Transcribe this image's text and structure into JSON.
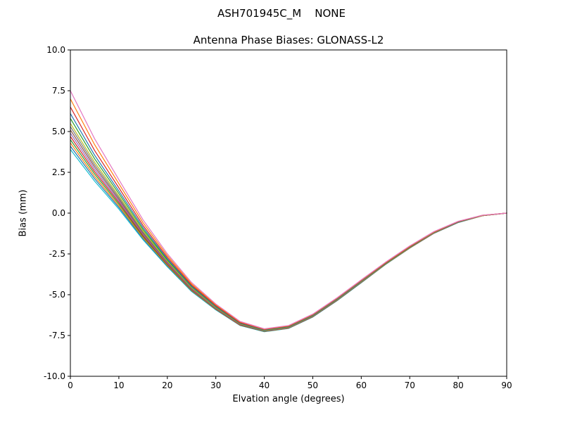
{
  "chart_data": {
    "type": "line",
    "suptitle": "ASH701945C_M    NONE",
    "title": "Antenna Phase Biases: GLONASS-L2",
    "xlabel": "Elvation angle (degrees)",
    "ylabel": "Bias (mm)",
    "xlim": [
      0,
      90
    ],
    "ylim": [
      -10,
      10
    ],
    "xticks": [
      0,
      10,
      20,
      30,
      40,
      50,
      60,
      70,
      80,
      90
    ],
    "yticks": [
      -10,
      -7.5,
      -5,
      -2.5,
      0,
      2.5,
      5,
      7.5,
      10
    ],
    "grid": false,
    "legend_position": "none",
    "x": [
      0,
      5,
      10,
      15,
      20,
      25,
      30,
      35,
      40,
      45,
      50,
      55,
      60,
      65,
      70,
      75,
      80,
      85,
      90
    ],
    "series": [
      {
        "name": "s01",
        "color": "#17becf",
        "values": [
          3.9,
          1.96,
          0.25,
          -1.64,
          -3.29,
          -4.8,
          -5.93,
          -6.89,
          -7.27,
          -7.07,
          -6.37,
          -5.37,
          -4.27,
          -3.15,
          -2.15,
          -1.24,
          -0.58,
          -0.16,
          0.0
        ]
      },
      {
        "name": "s02",
        "color": "#1f77b4",
        "values": [
          4.1,
          2.11,
          0.35,
          -1.57,
          -3.24,
          -4.77,
          -5.91,
          -6.88,
          -7.26,
          -7.06,
          -6.36,
          -5.36,
          -4.26,
          -3.14,
          -2.14,
          -1.23,
          -0.57,
          -0.16,
          0.0
        ]
      },
      {
        "name": "s03",
        "color": "#ff7f0e",
        "values": [
          4.3,
          2.25,
          0.45,
          -1.51,
          -3.2,
          -4.74,
          -5.89,
          -6.86,
          -7.25,
          -7.05,
          -6.35,
          -5.35,
          -4.25,
          -3.14,
          -2.14,
          -1.23,
          -0.57,
          -0.16,
          0.0
        ]
      },
      {
        "name": "s04",
        "color": "#2ca02c",
        "values": [
          4.5,
          2.4,
          0.55,
          -1.44,
          -3.15,
          -4.71,
          -5.87,
          -6.85,
          -7.24,
          -7.04,
          -6.34,
          -5.34,
          -4.24,
          -3.13,
          -2.13,
          -1.22,
          -0.56,
          -0.16,
          0.0
        ]
      },
      {
        "name": "s05",
        "color": "#d62728",
        "values": [
          4.7,
          2.54,
          0.65,
          -1.37,
          -3.11,
          -4.68,
          -5.85,
          -6.84,
          -7.23,
          -7.03,
          -6.33,
          -5.33,
          -4.23,
          -3.12,
          -2.12,
          -1.22,
          -0.56,
          -0.16,
          0.0
        ]
      },
      {
        "name": "s06",
        "color": "#9467bd",
        "values": [
          4.9,
          2.68,
          0.75,
          -1.3,
          -3.07,
          -4.65,
          -5.83,
          -6.82,
          -7.22,
          -7.02,
          -6.32,
          -5.32,
          -4.22,
          -3.11,
          -2.11,
          -1.21,
          -0.56,
          -0.15,
          0.0
        ]
      },
      {
        "name": "s07",
        "color": "#8c564b",
        "values": [
          5.1,
          2.83,
          0.85,
          -1.23,
          -3.02,
          -4.62,
          -5.81,
          -6.81,
          -7.21,
          -7.01,
          -6.31,
          -5.31,
          -4.21,
          -3.1,
          -2.1,
          -1.2,
          -0.55,
          -0.15,
          0.0
        ]
      },
      {
        "name": "s08",
        "color": "#7f7f7f",
        "values": [
          5.3,
          2.97,
          0.95,
          -1.17,
          -2.98,
          -4.58,
          -5.79,
          -6.79,
          -7.2,
          -7.0,
          -6.3,
          -5.3,
          -4.2,
          -3.1,
          -2.1,
          -1.2,
          -0.55,
          -0.15,
          0.0
        ]
      },
      {
        "name": "s09",
        "color": "#bcbd22",
        "values": [
          5.5,
          3.12,
          1.05,
          -1.1,
          -2.93,
          -4.55,
          -5.77,
          -6.78,
          -7.18,
          -6.98,
          -6.28,
          -5.28,
          -4.18,
          -3.09,
          -2.09,
          -1.19,
          -0.54,
          -0.15,
          0.0
        ]
      },
      {
        "name": "s10",
        "color": "#2ca02c",
        "values": [
          5.8,
          3.33,
          1.2,
          -1.0,
          -2.87,
          -4.51,
          -5.74,
          -6.76,
          -7.17,
          -6.97,
          -6.27,
          -5.27,
          -4.17,
          -3.08,
          -2.08,
          -1.18,
          -0.54,
          -0.14,
          0.0
        ]
      },
      {
        "name": "s11",
        "color": "#1f77b4",
        "values": [
          6.1,
          3.55,
          1.35,
          -0.89,
          -2.8,
          -4.47,
          -5.71,
          -6.74,
          -7.15,
          -6.95,
          -6.25,
          -5.25,
          -4.15,
          -3.06,
          -2.06,
          -1.17,
          -0.53,
          -0.14,
          0.0
        ]
      },
      {
        "name": "s12",
        "color": "#d62728",
        "values": [
          6.5,
          3.84,
          1.55,
          -0.76,
          -2.71,
          -4.41,
          -5.67,
          -6.71,
          -7.13,
          -6.93,
          -6.23,
          -5.23,
          -4.13,
          -3.05,
          -2.05,
          -1.16,
          -0.52,
          -0.14,
          0.0
        ]
      },
      {
        "name": "s13",
        "color": "#ff7f0e",
        "values": [
          7.0,
          4.2,
          1.8,
          -0.59,
          -2.6,
          -4.33,
          -5.62,
          -6.67,
          -7.11,
          -6.91,
          -6.21,
          -5.21,
          -4.11,
          -3.03,
          -2.03,
          -1.15,
          -0.51,
          -0.13,
          0.0
        ]
      },
      {
        "name": "s14",
        "color": "#e377c2",
        "values": [
          7.5,
          4.56,
          2.05,
          -0.42,
          -2.49,
          -4.25,
          -5.57,
          -6.64,
          -7.09,
          -6.89,
          -6.19,
          -5.19,
          -4.09,
          -3.01,
          -2.01,
          -1.13,
          -0.5,
          -0.13,
          0.0
        ]
      }
    ]
  }
}
